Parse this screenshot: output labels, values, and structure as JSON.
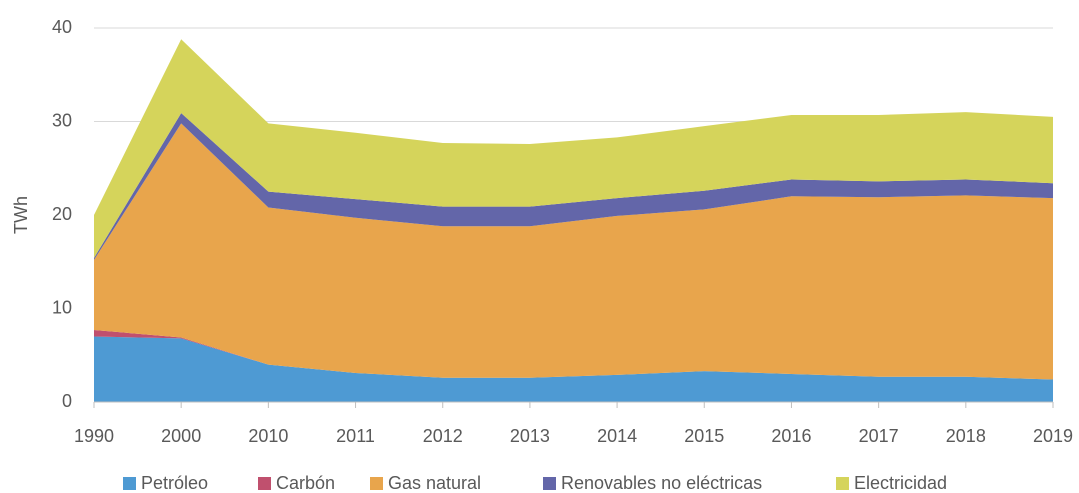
{
  "chart_data": {
    "type": "area",
    "stacked": true,
    "y_label": "TWh",
    "categories": [
      "1990",
      "2000",
      "2010",
      "2011",
      "2012",
      "2013",
      "2014",
      "2015",
      "2016",
      "2017",
      "2018",
      "2019"
    ],
    "series": [
      {
        "name": "Petróleo",
        "color": "#4e9ad3",
        "values": [
          7.0,
          6.8,
          4.0,
          3.1,
          2.6,
          2.6,
          2.9,
          3.3,
          3.0,
          2.7,
          2.7,
          2.4
        ]
      },
      {
        "name": "Carbón",
        "color": "#c0506e",
        "values": [
          0.7,
          0.1,
          0,
          0,
          0,
          0,
          0,
          0,
          0,
          0,
          0,
          0
        ]
      },
      {
        "name": "Gas natural",
        "color": "#e8a54c",
        "values": [
          7.5,
          22.9,
          16.8,
          16.6,
          16.2,
          16.2,
          17.0,
          17.3,
          19.0,
          19.2,
          19.4,
          19.4
        ]
      },
      {
        "name": "Renovables no eléctricas",
        "color": "#6366a9",
        "values": [
          0.2,
          1.1,
          1.7,
          2.0,
          2.1,
          2.1,
          1.9,
          2.0,
          1.8,
          1.7,
          1.7,
          1.6
        ]
      },
      {
        "name": "Electricidad",
        "color": "#d5d45b",
        "values": [
          4.6,
          7.9,
          7.3,
          7.1,
          6.8,
          6.7,
          6.5,
          6.9,
          6.9,
          7.1,
          7.2,
          7.1
        ]
      }
    ],
    "ylim": [
      0,
      40
    ],
    "yticks": [
      0,
      10,
      20,
      30,
      40
    ],
    "grid": true,
    "legend": "bottom"
  }
}
